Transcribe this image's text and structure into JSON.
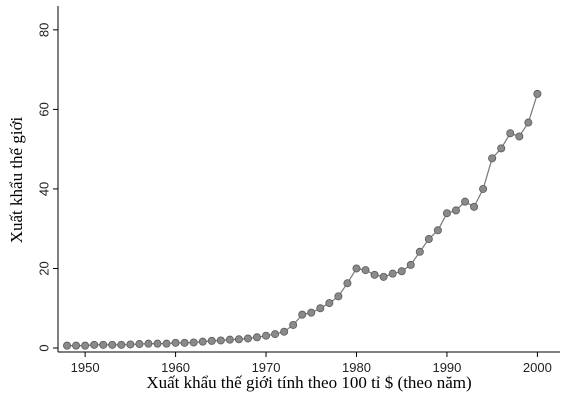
{
  "chart_data": {
    "type": "line",
    "xlabel": "Xuất khẩu thế giới tính theo 100 tỉ $ (theo năm)",
    "ylabel": "Xuất khẩu thế giới",
    "xlim": [
      1947,
      2002.5
    ],
    "ylim": [
      -1,
      86
    ],
    "xticks": [
      1950,
      1960,
      1970,
      1980,
      1990,
      2000
    ],
    "yticks": [
      0,
      20,
      40,
      60,
      80
    ],
    "xtick_labels": [
      "1950",
      "1960",
      "1970",
      "1980",
      "1990",
      "2000"
    ],
    "ytick_labels": [
      "0",
      "20",
      "40",
      "60",
      "80"
    ],
    "grid": false,
    "colors": {
      "line": "#777777",
      "marker_fill": "#8a8a8a",
      "marker_stroke": "#5a5a5a"
    },
    "series": [
      {
        "x": [
          1948,
          1949,
          1950,
          1951,
          1952,
          1953,
          1954,
          1955,
          1956,
          1957,
          1958,
          1959,
          1960,
          1961,
          1962,
          1963,
          1964,
          1965,
          1966,
          1967,
          1968,
          1969,
          1970,
          1971,
          1972,
          1973,
          1974,
          1975,
          1976,
          1977,
          1978,
          1979,
          1980,
          1981,
          1982,
          1983,
          1984,
          1985,
          1986,
          1987,
          1988,
          1989,
          1990,
          1991,
          1992,
          1993,
          1994,
          1995,
          1996,
          1997,
          1998,
          1999,
          2000
        ],
        "values": [
          0.6,
          0.6,
          0.6,
          0.8,
          0.8,
          0.8,
          0.8,
          0.9,
          1.0,
          1.1,
          1.1,
          1.1,
          1.3,
          1.3,
          1.4,
          1.6,
          1.8,
          1.9,
          2.1,
          2.2,
          2.4,
          2.7,
          3.1,
          3.5,
          4.1,
          5.8,
          8.4,
          8.9,
          10.0,
          11.3,
          13.0,
          16.3,
          20.0,
          19.6,
          18.4,
          17.9,
          18.7,
          19.3,
          20.9,
          24.2,
          27.4,
          29.6,
          33.9,
          34.6,
          36.8,
          35.5,
          40.0,
          47.7,
          50.2,
          54.0,
          53.2,
          56.7,
          63.9
        ]
      }
    ]
  }
}
